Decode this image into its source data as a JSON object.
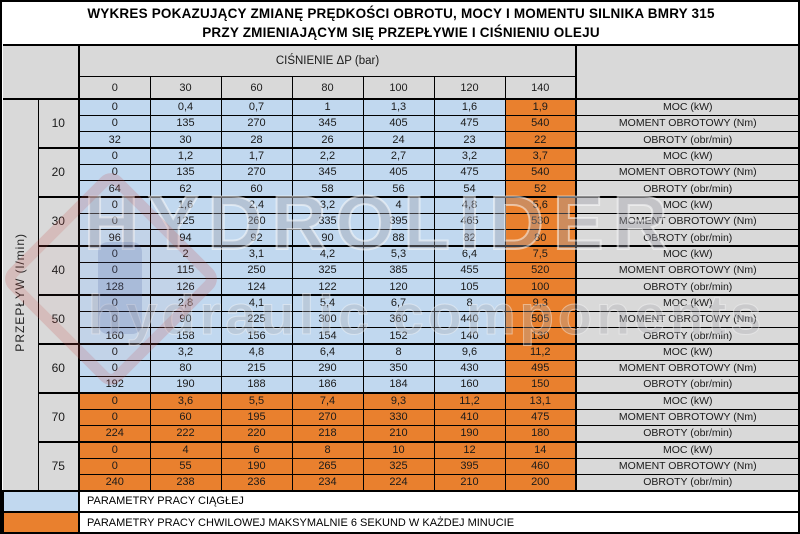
{
  "title": {
    "line1": "WYKRES POKAZUJĄCY ZMIANĘ PRĘDKOŚCI OBROTU, MOCY I MOMENTU SILNIKA BMRY 315",
    "line2": "PRZY ZMIENIAJĄCYM SIĘ PRZEPŁYWIE I CIŚNIENIU OLEJU"
  },
  "colors": {
    "continuous": "#c1d8ef",
    "temporary": "#e9802e",
    "header_grey": "#d9d9d9",
    "border": "#000000"
  },
  "table": {
    "pressure_header": "CIŚNIENIE ΔP (bar)",
    "pressure_values": [
      "0",
      "30",
      "60",
      "80",
      "100",
      "120",
      "140"
    ],
    "flow_label": "PRZEPŁYW (l/min)",
    "groups": [
      {
        "flow": "10",
        "highlight": "last_column",
        "rows": [
          {
            "label": "MOC (kW)",
            "values": [
              "0",
              "0,4",
              "0,7",
              "1",
              "1,3",
              "1,6",
              "1,9"
            ]
          },
          {
            "label": "MOMENT OBROTOWY (Nm)",
            "values": [
              "0",
              "135",
              "270",
              "345",
              "405",
              "475",
              "540"
            ]
          },
          {
            "label": "OBROTY (obr/min)",
            "values": [
              "32",
              "30",
              "28",
              "26",
              "24",
              "23",
              "22"
            ]
          }
        ]
      },
      {
        "flow": "20",
        "highlight": "last_column",
        "rows": [
          {
            "label": "MOC (kW)",
            "values": [
              "0",
              "1,2",
              "1,7",
              "2,2",
              "2,7",
              "3,2",
              "3,7"
            ]
          },
          {
            "label": "MOMENT OBROTOWY (Nm)",
            "values": [
              "0",
              "135",
              "270",
              "345",
              "405",
              "475",
              "540"
            ]
          },
          {
            "label": "OBROTY (obr/min)",
            "values": [
              "64",
              "62",
              "60",
              "58",
              "56",
              "54",
              "52"
            ]
          }
        ]
      },
      {
        "flow": "30",
        "highlight": "last_column",
        "rows": [
          {
            "label": "MOC (kW)",
            "values": [
              "0",
              "1,6",
              "2,4",
              "3,2",
              "4",
              "4,8",
              "5,6"
            ]
          },
          {
            "label": "MOMENT OBROTOWY (Nm)",
            "values": [
              "0",
              "125",
              "260",
              "335",
              "395",
              "465",
              "530"
            ]
          },
          {
            "label": "OBROTY (obr/min)",
            "values": [
              "96",
              "94",
              "92",
              "90",
              "88",
              "82",
              "80"
            ]
          }
        ]
      },
      {
        "flow": "40",
        "highlight": "last_column",
        "rows": [
          {
            "label": "MOC (kW)",
            "values": [
              "0",
              "2",
              "3,1",
              "4,2",
              "5,3",
              "6,4",
              "7,5"
            ]
          },
          {
            "label": "MOMENT OBROTOWY (Nm)",
            "values": [
              "0",
              "115",
              "250",
              "325",
              "385",
              "455",
              "520"
            ]
          },
          {
            "label": "OBROTY (obr/min)",
            "values": [
              "128",
              "126",
              "124",
              "122",
              "120",
              "105",
              "100"
            ]
          }
        ]
      },
      {
        "flow": "50",
        "highlight": "last_column",
        "rows": [
          {
            "label": "MOC (kW)",
            "values": [
              "0",
              "2,8",
              "4,1",
              "5,4",
              "6,7",
              "8",
              "9,3"
            ]
          },
          {
            "label": "MOMENT OBROTOWY (Nm)",
            "values": [
              "0",
              "90",
              "225",
              "300",
              "360",
              "440",
              "505"
            ]
          },
          {
            "label": "OBROTY (obr/min)",
            "values": [
              "160",
              "158",
              "156",
              "154",
              "152",
              "140",
              "130"
            ]
          }
        ]
      },
      {
        "flow": "60",
        "highlight": "last_column",
        "rows": [
          {
            "label": "MOC (kW)",
            "values": [
              "0",
              "3,2",
              "4,8",
              "6,4",
              "8",
              "9,6",
              "11,2"
            ]
          },
          {
            "label": "MOMENT OBROTOWY (Nm)",
            "values": [
              "0",
              "80",
              "215",
              "290",
              "350",
              "430",
              "495"
            ]
          },
          {
            "label": "OBROTY (obr/min)",
            "values": [
              "192",
              "190",
              "188",
              "186",
              "184",
              "160",
              "150"
            ]
          }
        ]
      },
      {
        "flow": "70",
        "highlight": "all",
        "rows": [
          {
            "label": "MOC (kW)",
            "values": [
              "0",
              "3,6",
              "5,5",
              "7,4",
              "9,3",
              "11,2",
              "13,1"
            ]
          },
          {
            "label": "MOMENT OBROTOWY (Nm)",
            "values": [
              "0",
              "60",
              "195",
              "270",
              "330",
              "410",
              "475"
            ]
          },
          {
            "label": "OBROTY (obr/min)",
            "values": [
              "224",
              "222",
              "220",
              "218",
              "210",
              "190",
              "180"
            ]
          }
        ]
      },
      {
        "flow": "75",
        "highlight": "all",
        "rows": [
          {
            "label": "MOC (kW)",
            "values": [
              "0",
              "4",
              "6",
              "8",
              "10",
              "12",
              "14"
            ]
          },
          {
            "label": "MOMENT OBROTOWY (Nm)",
            "values": [
              "0",
              "55",
              "190",
              "265",
              "325",
              "395",
              "460"
            ]
          },
          {
            "label": "OBROTY (obr/min)",
            "values": [
              "240",
              "238",
              "236",
              "234",
              "224",
              "210",
              "200"
            ]
          }
        ]
      }
    ]
  },
  "legend": [
    {
      "swatch": "continuous",
      "text": "PARAMETRY PRACY CIĄGŁEJ"
    },
    {
      "swatch": "temporary",
      "text": "PARAMETRY PRACY CHWILOWEJ MAKSYMALNIE 6 SEKUND W KAŻDEJ MINUCIE"
    }
  ],
  "watermark": {
    "line1": "HYDROLIDER",
    "line2": "hydraulic components"
  },
  "chart_data": {
    "type": "table",
    "title": "WYKRES POKAZUJĄCY ZMIANĘ PRĘDKOŚCI OBROTU, MOCY I MOMENTU SILNIKA BMRY 315 PRZY ZMIENIAJĄCYM SIĘ PRZEPŁYWIE I CIŚNIENIU OLEJU",
    "xlabel": "CIŚNIENIE ΔP (bar)",
    "ylabel": "PRZEPŁYW (l/min)",
    "pressure_bar": [
      0,
      30,
      60,
      80,
      100,
      120,
      140
    ],
    "series": [
      {
        "flow_l_min": 10,
        "power_kW": [
          0,
          0.4,
          0.7,
          1,
          1.3,
          1.6,
          1.9
        ],
        "torque_Nm": [
          0,
          135,
          270,
          345,
          405,
          475,
          540
        ],
        "speed_rpm": [
          32,
          30,
          28,
          26,
          24,
          23,
          22
        ],
        "temporary_zone": "140 bar"
      },
      {
        "flow_l_min": 20,
        "power_kW": [
          0,
          1.2,
          1.7,
          2.2,
          2.7,
          3.2,
          3.7
        ],
        "torque_Nm": [
          0,
          135,
          270,
          345,
          405,
          475,
          540
        ],
        "speed_rpm": [
          64,
          62,
          60,
          58,
          56,
          54,
          52
        ],
        "temporary_zone": "140 bar"
      },
      {
        "flow_l_min": 30,
        "power_kW": [
          0,
          1.6,
          2.4,
          3.2,
          4,
          4.8,
          5.6
        ],
        "torque_Nm": [
          0,
          125,
          260,
          335,
          395,
          465,
          530
        ],
        "speed_rpm": [
          96,
          94,
          92,
          90,
          88,
          82,
          80
        ],
        "temporary_zone": "140 bar"
      },
      {
        "flow_l_min": 40,
        "power_kW": [
          0,
          2,
          3.1,
          4.2,
          5.3,
          6.4,
          7.5
        ],
        "torque_Nm": [
          0,
          115,
          250,
          325,
          385,
          455,
          520
        ],
        "speed_rpm": [
          128,
          126,
          124,
          122,
          120,
          105,
          100
        ],
        "temporary_zone": "140 bar"
      },
      {
        "flow_l_min": 50,
        "power_kW": [
          0,
          2.8,
          4.1,
          5.4,
          6.7,
          8,
          9.3
        ],
        "torque_Nm": [
          0,
          90,
          225,
          300,
          360,
          440,
          505
        ],
        "speed_rpm": [
          160,
          158,
          156,
          154,
          152,
          140,
          130
        ],
        "temporary_zone": "140 bar"
      },
      {
        "flow_l_min": 60,
        "power_kW": [
          0,
          3.2,
          4.8,
          6.4,
          8,
          9.6,
          11.2
        ],
        "torque_Nm": [
          0,
          80,
          215,
          290,
          350,
          430,
          495
        ],
        "speed_rpm": [
          192,
          190,
          188,
          186,
          184,
          160,
          150
        ],
        "temporary_zone": "140 bar"
      },
      {
        "flow_l_min": 70,
        "power_kW": [
          0,
          3.6,
          5.5,
          7.4,
          9.3,
          11.2,
          13.1
        ],
        "torque_Nm": [
          0,
          60,
          195,
          270,
          330,
          410,
          475
        ],
        "speed_rpm": [
          224,
          222,
          220,
          218,
          210,
          190,
          180
        ],
        "temporary_zone": "all"
      },
      {
        "flow_l_min": 75,
        "power_kW": [
          0,
          4,
          6,
          8,
          10,
          12,
          14
        ],
        "torque_Nm": [
          0,
          55,
          190,
          265,
          325,
          395,
          460
        ],
        "speed_rpm": [
          240,
          238,
          236,
          234,
          224,
          210,
          200
        ],
        "temporary_zone": "all"
      }
    ],
    "legend_entries": [
      "PARAMETRY PRACY CIĄGŁEJ",
      "PARAMETRY PRACY CHWILOWEJ MAKSYMALNIE 6 SEKUND W KAŻDEJ MINUCIE"
    ],
    "row_parameter_labels": [
      "MOC (kW)",
      "MOMENT OBROTOWY (Nm)",
      "OBROTY (obr/min)"
    ]
  }
}
